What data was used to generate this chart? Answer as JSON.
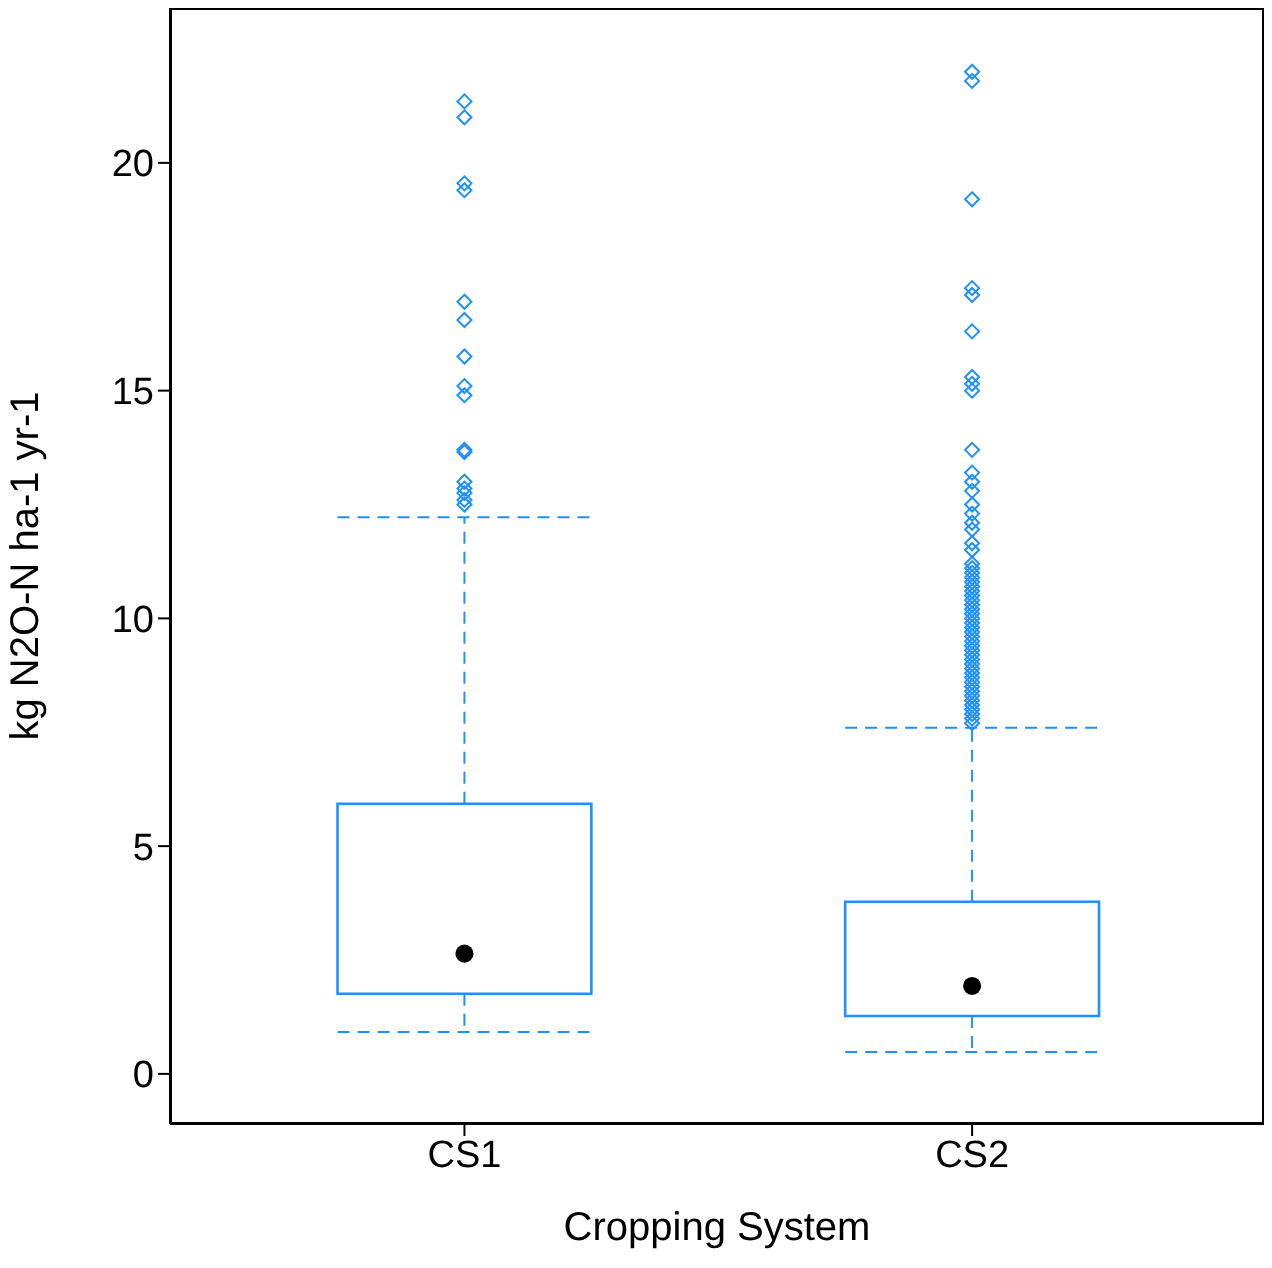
{
  "chart_data": {
    "type": "box",
    "xlabel": "Cropping System",
    "ylabel": "kg N2O-N ha-1 yr-1",
    "categories": [
      "CS1",
      "CS2"
    ],
    "color": "#1e90ff",
    "ylim": [
      -1.1,
      23.4
    ],
    "yticks": [
      0,
      5,
      10,
      15,
      20
    ],
    "marker": "diamond",
    "line_style": "dashed",
    "boxes": [
      {
        "low": 0.92,
        "q1": 1.76,
        "median": 2.64,
        "q3": 5.93,
        "high": 12.22,
        "outliers": [
          21.35,
          21.0,
          19.55,
          19.4,
          16.95,
          16.55,
          15.75,
          15.1,
          14.9,
          13.7,
          13.65,
          13.0,
          12.85,
          12.75,
          12.6,
          12.5
        ]
      },
      {
        "low": 0.48,
        "q1": 1.27,
        "median": 1.93,
        "q3": 3.78,
        "high": 7.6,
        "outliers": [
          22.0,
          21.8,
          19.2,
          17.25,
          17.1,
          16.3,
          15.3,
          15.15,
          15.0,
          13.7,
          13.2,
          13.0,
          12.8,
          12.5,
          12.3,
          12.1,
          11.95,
          11.65,
          11.5,
          11.2,
          11.1,
          11.0,
          10.9,
          10.8,
          10.7,
          10.6,
          10.5,
          10.4,
          10.3,
          10.2,
          10.1,
          10.0,
          9.9,
          9.8,
          9.7,
          9.6,
          9.5,
          9.4,
          9.3,
          9.2,
          9.1,
          9.0,
          8.9,
          8.8,
          8.7,
          8.6,
          8.5,
          8.4,
          8.3,
          8.2,
          8.1,
          8.0,
          7.9,
          7.8,
          7.7
        ]
      }
    ]
  }
}
